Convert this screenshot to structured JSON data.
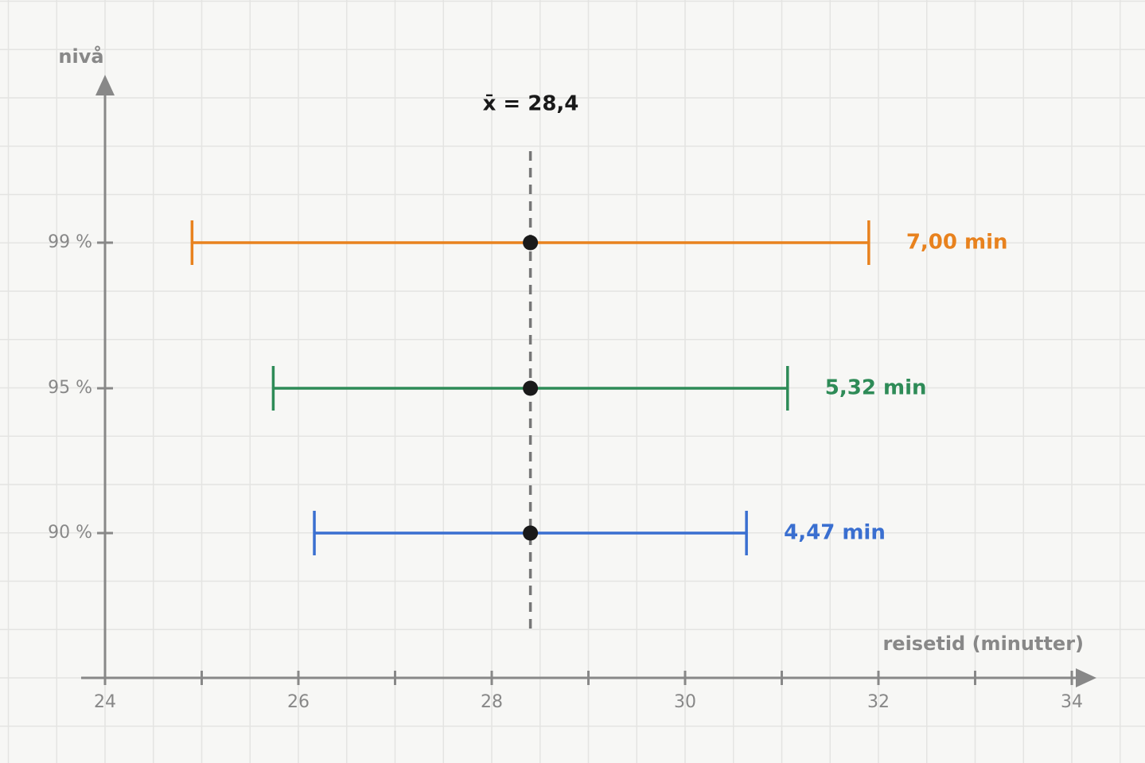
{
  "chart_data": {
    "type": "interval",
    "x_label": "reisetid (minutter)",
    "y_label": "nivå",
    "xlim": [
      24,
      34
    ],
    "xticks": [
      24,
      26,
      28,
      30,
      32,
      34
    ],
    "minor_xticks": [
      25,
      27,
      29,
      31,
      33
    ],
    "categories": [
      "99 %",
      "95 %",
      "90 %"
    ],
    "mean": {
      "value": 28.4,
      "label": "x̄ = 28,4"
    },
    "intervals": [
      {
        "color": "#e8821e",
        "low": 24.9,
        "high": 31.9,
        "width": 7.0,
        "width_label": "7,00 min"
      },
      {
        "color": "#2e8b57",
        "low": 25.74,
        "high": 31.06,
        "width": 5.32,
        "width_label": "5,32 min"
      },
      {
        "color": "#3a6fd0",
        "low": 26.165,
        "high": 30.635,
        "width": 4.47,
        "width_label": "4,47 min"
      }
    ],
    "grid": true
  }
}
